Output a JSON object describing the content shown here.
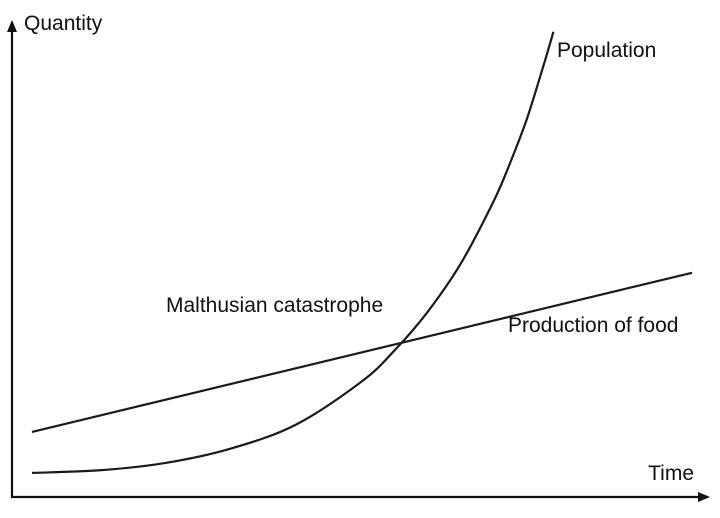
{
  "chart_data": {
    "type": "line",
    "title": "",
    "ylabel": "Quantity",
    "xlabel": "Time",
    "xlim": [
      0,
      10
    ],
    "ylim": [
      0,
      10
    ],
    "grid": false,
    "legend": "none",
    "series": [
      {
        "name": "Population",
        "x": [
          0,
          1,
          2,
          3,
          4,
          5,
          5.5,
          6,
          6.5,
          7,
          7.25,
          7.5,
          7.75,
          7.9
        ],
        "y": [
          0.75,
          0.8,
          0.95,
          1.25,
          1.75,
          2.65,
          3.3,
          4.1,
          5.1,
          6.4,
          7.2,
          8.1,
          9.2,
          9.9
        ],
        "color": "#1a1a1a"
      },
      {
        "name": "Production of food",
        "x": [
          0,
          10
        ],
        "y": [
          1.6,
          4.9
        ],
        "color": "#1a1a1a"
      }
    ],
    "annotations": [
      {
        "text": "Malthusian catastrophe",
        "x": 5.7,
        "y": 3.5
      }
    ]
  }
}
